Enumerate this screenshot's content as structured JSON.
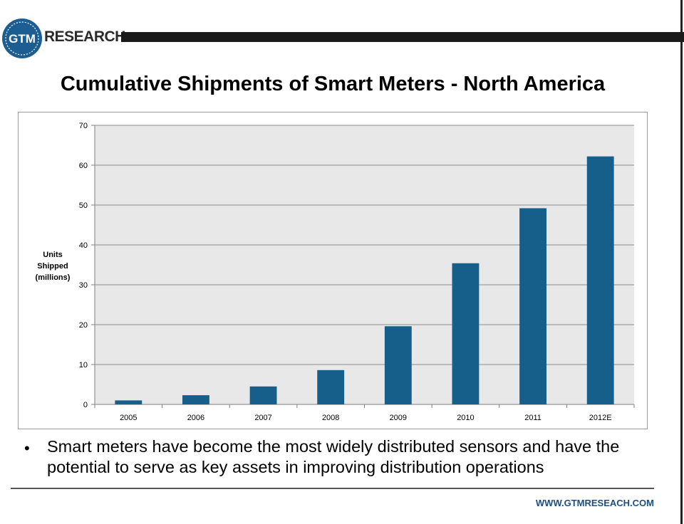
{
  "brand": {
    "logo_text": "GTM",
    "name": "RESEARCH",
    "url": "WWW.GTMRESEACH.COM"
  },
  "title": "Cumulative Shipments of Smart Meters - North America",
  "bullet": "Smart meters have become the most widely distributed sensors and have the potential to serve as key assets in improving distribution operations",
  "chart_data": {
    "type": "bar",
    "title": "Cumulative Shipments of Smart Meters - North America",
    "xlabel": "",
    "ylabel": "Units Shipped (millions)",
    "ylabel_lines": [
      "Units",
      "Shipped",
      "(millions)"
    ],
    "categories": [
      "2005",
      "2006",
      "2007",
      "2008",
      "2009",
      "2010",
      "2011",
      "2012E"
    ],
    "values": [
      1,
      2.3,
      4.5,
      8.6,
      19.6,
      35.4,
      49.2,
      62.2
    ],
    "ylim": [
      0,
      70
    ],
    "yticks": [
      0,
      10,
      20,
      30,
      40,
      50,
      60,
      70
    ],
    "grid": true,
    "legend": "none",
    "colors": {
      "bar": "#155f8a",
      "plot_bg": "#e8e8e8",
      "grid": "#8c8c8c"
    }
  }
}
